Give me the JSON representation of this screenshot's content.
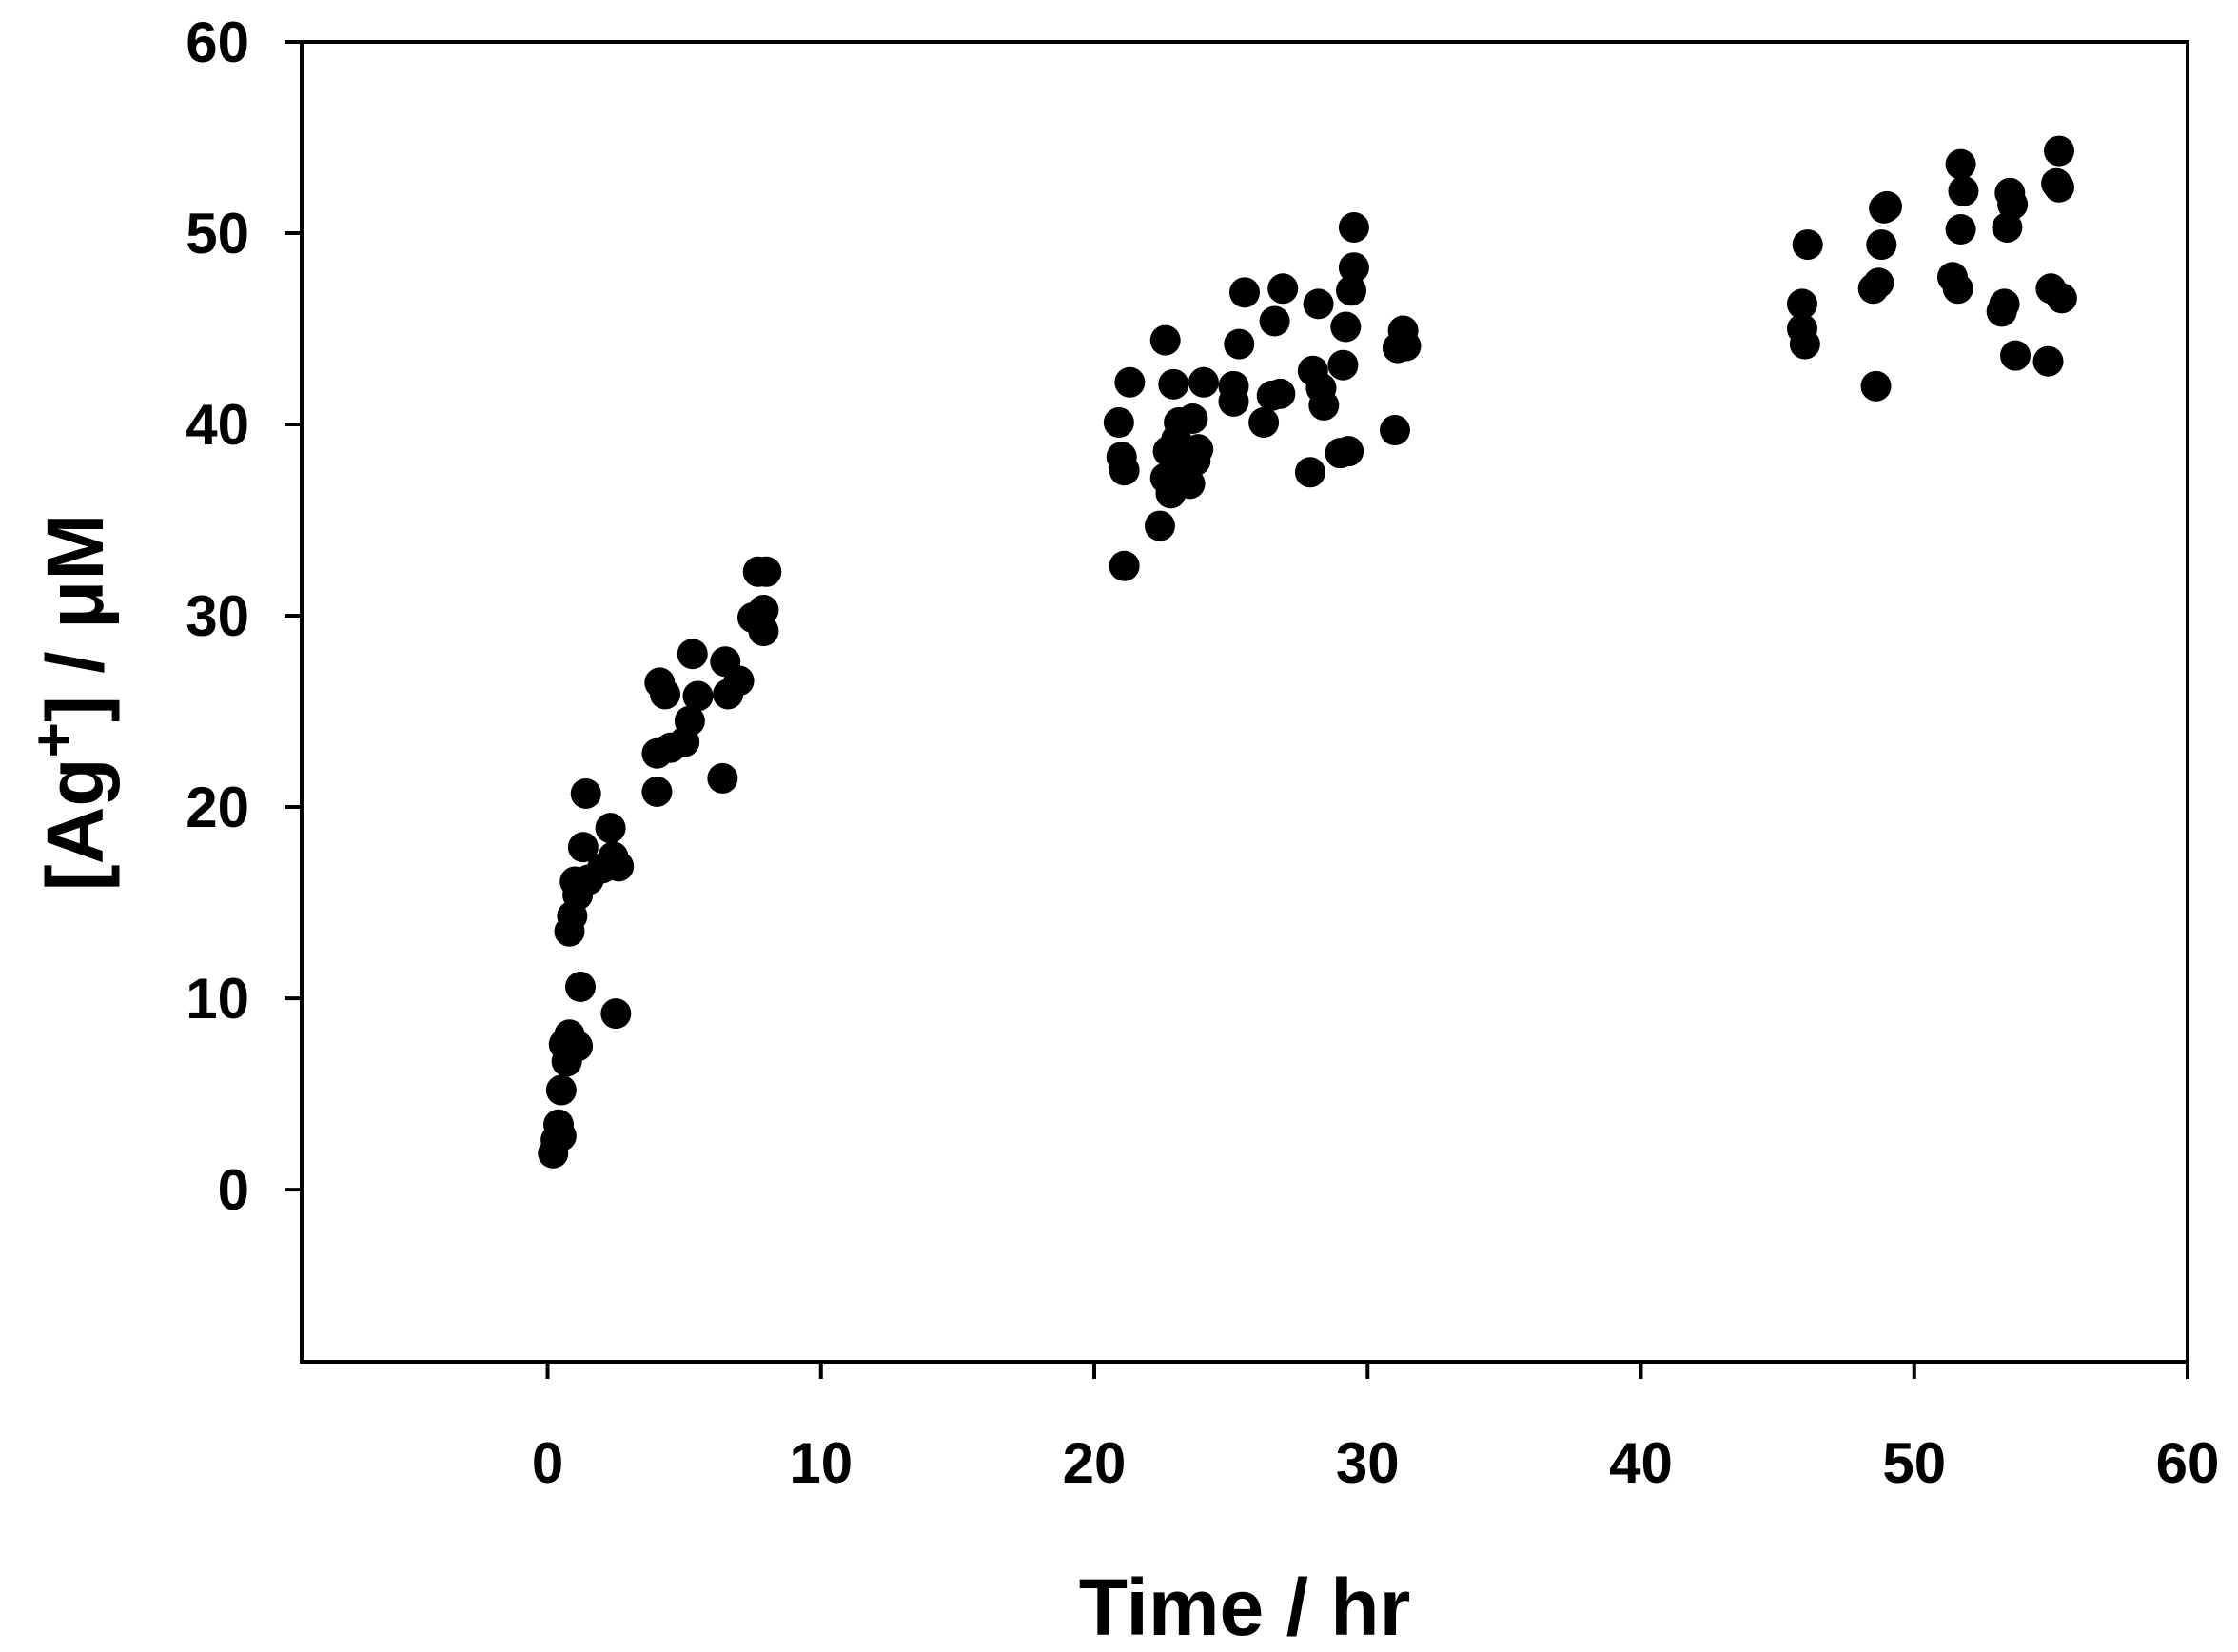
{
  "chart_data": {
    "type": "scatter",
    "xlabel": "Time / hr",
    "ylabel": {
      "prefix": "[Ag",
      "superscript": "+",
      "suffix": "] / μM"
    },
    "xlim": [
      -9,
      60
    ],
    "ylim": [
      -9,
      60
    ],
    "xticks": [
      0,
      10,
      20,
      30,
      40,
      50,
      60
    ],
    "yticks": [
      0,
      10,
      20,
      30,
      40,
      50,
      60
    ],
    "grid": false,
    "legend": "none",
    "marker_color": "#000000",
    "series": [
      {
        "points": [
          [
            0.2,
            1.9
          ],
          [
            0.3,
            2.6
          ],
          [
            0.4,
            3.4
          ],
          [
            0.5,
            2.8
          ],
          [
            0.5,
            5.2
          ],
          [
            0.6,
            7.6
          ],
          [
            0.7,
            6.7
          ],
          [
            0.8,
            8.1
          ],
          [
            0.8,
            13.5
          ],
          [
            0.9,
            14.3
          ],
          [
            1.0,
            16.1
          ],
          [
            1.1,
            7.5
          ],
          [
            1.1,
            15.4
          ],
          [
            1.2,
            10.6
          ],
          [
            1.3,
            17.9
          ],
          [
            1.4,
            20.7
          ],
          [
            1.5,
            16.2
          ],
          [
            2.0,
            16.8
          ],
          [
            2.3,
            18.9
          ],
          [
            2.4,
            17.4
          ],
          [
            2.5,
            9.2
          ],
          [
            2.6,
            16.9
          ],
          [
            4.0,
            20.8
          ],
          [
            4.0,
            22.8
          ],
          [
            4.1,
            26.5
          ],
          [
            4.3,
            25.9
          ],
          [
            4.5,
            23.1
          ],
          [
            5.0,
            23.4
          ],
          [
            5.2,
            24.5
          ],
          [
            5.3,
            28.0
          ],
          [
            5.5,
            25.8
          ],
          [
            6.4,
            21.5
          ],
          [
            6.5,
            27.6
          ],
          [
            6.6,
            25.9
          ],
          [
            7.0,
            26.6
          ],
          [
            7.5,
            29.9
          ],
          [
            7.7,
            32.3
          ],
          [
            7.9,
            30.3
          ],
          [
            7.9,
            29.2
          ],
          [
            8.0,
            32.3
          ],
          [
            20.9,
            40.1
          ],
          [
            21.0,
            38.3
          ],
          [
            21.1,
            37.6
          ],
          [
            21.1,
            32.6
          ],
          [
            21.3,
            42.2
          ],
          [
            22.4,
            34.7
          ],
          [
            22.6,
            37.2
          ],
          [
            22.6,
            44.4
          ],
          [
            22.7,
            38.6
          ],
          [
            22.8,
            36.4
          ],
          [
            22.9,
            42.1
          ],
          [
            23.0,
            39.2
          ],
          [
            23.1,
            40.1
          ],
          [
            23.3,
            37.6
          ],
          [
            23.5,
            36.9
          ],
          [
            23.6,
            40.3
          ],
          [
            23.7,
            38.1
          ],
          [
            23.8,
            38.7
          ],
          [
            24.0,
            42.2
          ],
          [
            25.1,
            41.2
          ],
          [
            25.1,
            42.0
          ],
          [
            25.3,
            44.2
          ],
          [
            25.5,
            46.9
          ],
          [
            26.2,
            40.1
          ],
          [
            26.5,
            41.5
          ],
          [
            26.6,
            45.4
          ],
          [
            26.8,
            41.6
          ],
          [
            26.9,
            47.1
          ],
          [
            27.9,
            37.5
          ],
          [
            28.0,
            42.8
          ],
          [
            28.2,
            46.3
          ],
          [
            28.3,
            41.9
          ],
          [
            28.4,
            41.0
          ],
          [
            29.0,
            38.5
          ],
          [
            29.1,
            43.1
          ],
          [
            29.2,
            45.1
          ],
          [
            29.3,
            38.6
          ],
          [
            29.4,
            47.0
          ],
          [
            29.5,
            48.2
          ],
          [
            29.5,
            50.3
          ],
          [
            31.0,
            39.7
          ],
          [
            31.1,
            44.0
          ],
          [
            31.3,
            44.9
          ],
          [
            31.4,
            44.1
          ],
          [
            45.9,
            46.3
          ],
          [
            45.9,
            45.0
          ],
          [
            46.0,
            44.2
          ],
          [
            46.1,
            49.4
          ],
          [
            48.5,
            47.1
          ],
          [
            48.6,
            42.0
          ],
          [
            48.7,
            47.4
          ],
          [
            48.8,
            49.4
          ],
          [
            48.9,
            51.3
          ],
          [
            49.0,
            51.4
          ],
          [
            51.4,
            47.7
          ],
          [
            51.6,
            47.1
          ],
          [
            51.7,
            53.6
          ],
          [
            51.7,
            50.2
          ],
          [
            51.8,
            52.2
          ],
          [
            53.2,
            45.9
          ],
          [
            53.3,
            46.3
          ],
          [
            53.4,
            50.3
          ],
          [
            53.5,
            52.1
          ],
          [
            53.6,
            51.5
          ],
          [
            53.7,
            43.6
          ],
          [
            54.9,
            43.3
          ],
          [
            55.0,
            47.1
          ],
          [
            55.2,
            52.6
          ],
          [
            55.3,
            54.3
          ],
          [
            55.3,
            52.4
          ],
          [
            55.4,
            46.6
          ]
        ]
      }
    ]
  }
}
